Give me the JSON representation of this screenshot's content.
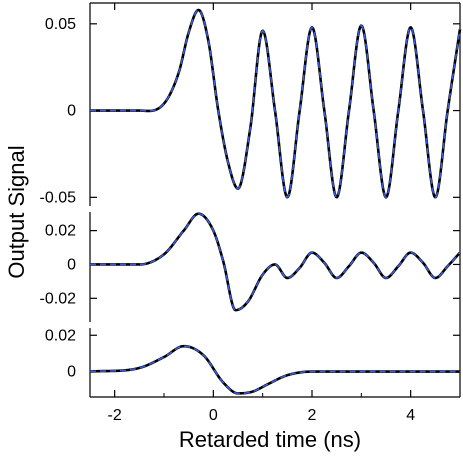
{
  "chart_data": {
    "type": "line",
    "xlabel": "Retarded time (ns)",
    "ylabel": "Output Signal",
    "xlim": [
      -2.5,
      5.0
    ],
    "x_ticks": [
      -2,
      0,
      2,
      4
    ],
    "x_tick_labels": [
      "-2",
      "0",
      "2",
      "4"
    ],
    "line_styles": {
      "solid": "#000000",
      "dashed": "#3b5bdb"
    },
    "panels": [
      {
        "name": "top",
        "ylim": [
          -0.055,
          0.062
        ],
        "y_ticks": [
          0.05,
          0,
          -0.05
        ],
        "y_tick_labels": [
          "0.05",
          "0",
          "-0.05"
        ],
        "samples": {
          "x": [
            -2.5,
            -1.5,
            -1.0,
            -0.7,
            -0.5,
            -0.3,
            -0.1,
            0.1,
            0.3,
            0.5,
            0.75,
            1.0,
            1.25,
            1.5,
            1.75,
            2.0,
            2.25,
            2.5,
            2.75,
            3.0,
            3.25,
            3.5,
            3.75,
            4.0,
            4.25,
            4.5,
            4.75,
            5.0
          ],
          "y": [
            0,
            0,
            0.004,
            0.022,
            0.045,
            0.058,
            0.04,
            0.0,
            -0.03,
            -0.045,
            -0.01,
            0.046,
            0.0,
            -0.05,
            0.0,
            0.048,
            0.0,
            -0.05,
            0.0,
            0.049,
            0.0,
            -0.05,
            0.0,
            0.048,
            0.0,
            -0.05,
            0.0,
            0.047
          ]
        }
      },
      {
        "name": "middle",
        "ylim": [
          -0.034,
          0.031
        ],
        "y_ticks": [
          0.02,
          0,
          -0.02
        ],
        "y_tick_labels": [
          "0.02",
          "0",
          "-0.02"
        ],
        "samples": {
          "x": [
            -2.5,
            -1.5,
            -1.0,
            -0.6,
            -0.3,
            0.0,
            0.2,
            0.45,
            0.7,
            1.0,
            1.25,
            1.5,
            1.75,
            2.0,
            2.25,
            2.5,
            2.75,
            3.0,
            3.25,
            3.5,
            3.75,
            4.0,
            4.25,
            4.5,
            4.75,
            5.0
          ],
          "y": [
            0,
            0,
            0.006,
            0.02,
            0.03,
            0.02,
            0.002,
            -0.027,
            -0.022,
            -0.006,
            0.0,
            -0.008,
            -0.002,
            0.007,
            0.001,
            -0.008,
            -0.001,
            0.007,
            0.001,
            -0.008,
            -0.001,
            0.007,
            0.001,
            -0.008,
            -0.001,
            0.007
          ]
        }
      },
      {
        "name": "bottom",
        "ylim": [
          -0.014,
          0.024
        ],
        "y_ticks": [
          0.02,
          0
        ],
        "y_tick_labels": [
          "0.02",
          "0"
        ],
        "samples": {
          "x": [
            -2.5,
            -1.5,
            -1.0,
            -0.6,
            -0.2,
            0.2,
            0.5,
            0.8,
            1.1,
            1.5,
            2.0,
            5.0
          ],
          "y": [
            0,
            0.002,
            0.008,
            0.014,
            0.009,
            -0.006,
            -0.012,
            -0.011,
            -0.007,
            -0.002,
            0,
            0
          ]
        }
      }
    ]
  }
}
